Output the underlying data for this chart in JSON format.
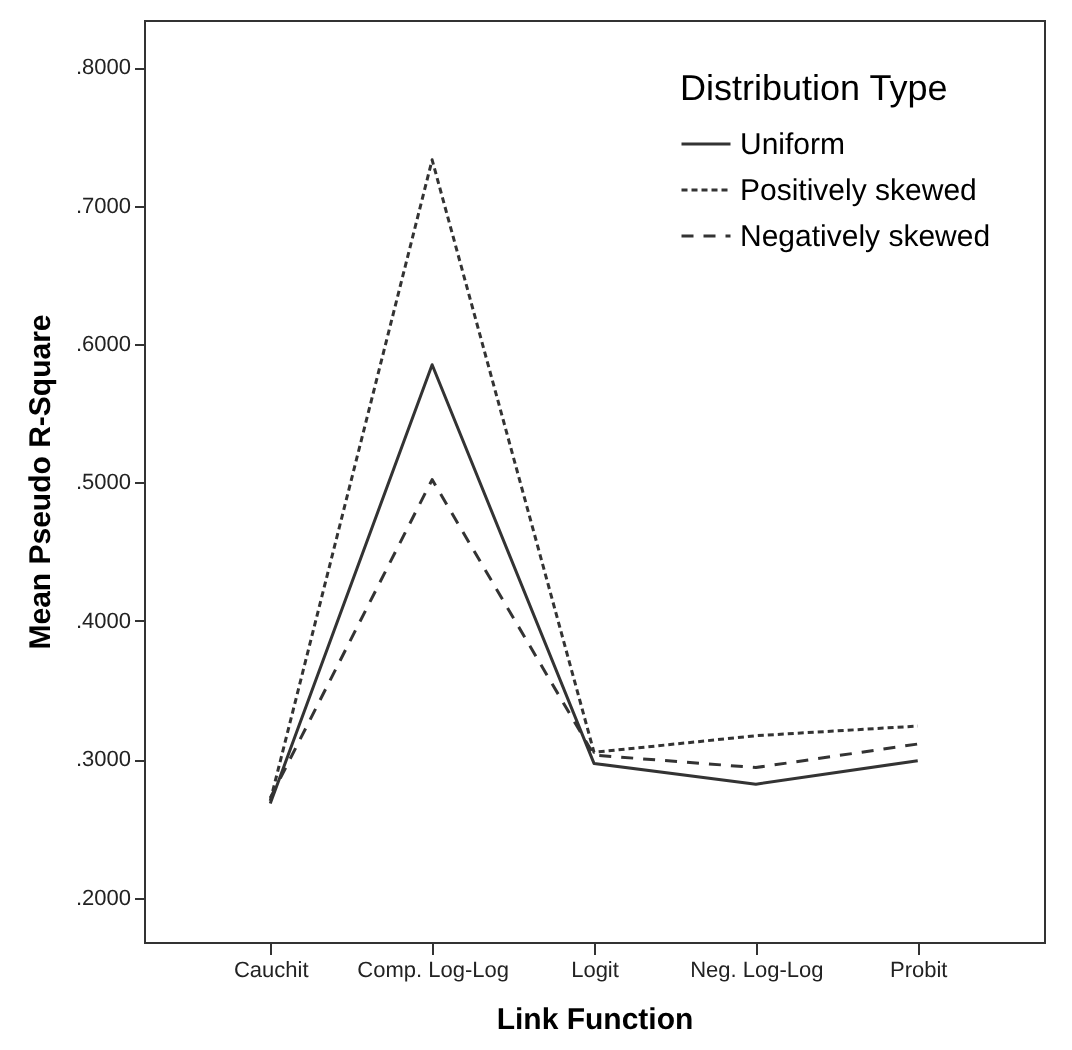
{
  "chart_data": {
    "type": "line",
    "xlabel": "Link Function",
    "ylabel": "Mean Pseudo R-Square",
    "legend_title": "Distribution Type",
    "categories": [
      "Cauchit",
      "Comp. Log-Log",
      "Logit",
      "Neg. Log-Log",
      "Probit"
    ],
    "series": [
      {
        "name": "Uniform",
        "color": "#333333",
        "line_style": "solid",
        "values": [
          0.268,
          0.585,
          0.297,
          0.282,
          0.299
        ]
      },
      {
        "name": "Positively skewed",
        "color": "#333333",
        "line_style": "dotted",
        "values": [
          0.27,
          0.733,
          0.305,
          0.317,
          0.324
        ]
      },
      {
        "name": "Negatively skewed",
        "color": "#333333",
        "line_style": "dashed",
        "values": [
          0.272,
          0.502,
          0.303,
          0.294,
          0.311
        ]
      }
    ],
    "ylim": [
      0.168,
      0.834
    ],
    "yticks": [
      {
        "value": 0.2,
        "label": ".2000"
      },
      {
        "value": 0.3,
        "label": ".3000"
      },
      {
        "value": 0.4,
        "label": ".4000"
      },
      {
        "value": 0.5,
        "label": ".5000"
      },
      {
        "value": 0.6,
        "label": ".6000"
      },
      {
        "value": 0.7,
        "label": ".7000"
      },
      {
        "value": 0.8,
        "label": ".8000"
      }
    ],
    "grid": false,
    "legend": "top right",
    "marker": "none"
  }
}
